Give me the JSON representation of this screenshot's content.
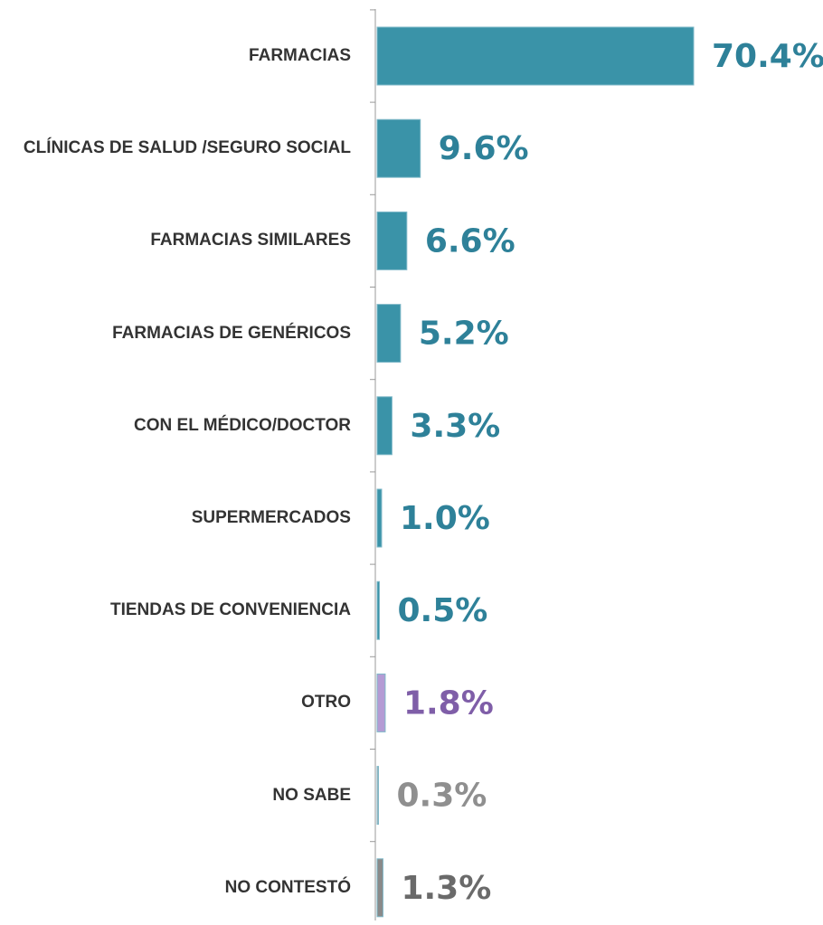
{
  "chart_data": {
    "type": "bar",
    "orientation": "horizontal",
    "categories": [
      "FARMACIAS",
      "CLÍNICAS DE SALUD /SEGURO SOCIAL",
      "FARMACIAS SIMILARES",
      "FARMACIAS DE GENÉRICOS",
      "CON EL MÉDICO/DOCTOR",
      "SUPERMERCADOS",
      "TIENDAS DE CONVENIENCIA",
      "OTRO",
      "NO SABE",
      "NO CONTESTÓ"
    ],
    "values": [
      70.4,
      9.6,
      6.6,
      5.2,
      3.3,
      1.0,
      0.5,
      1.8,
      0.3,
      1.3
    ],
    "value_labels": [
      "70.4%",
      "9.6%",
      "6.6%",
      "5.2%",
      "3.3%",
      "1.0%",
      "0.5%",
      "1.8%",
      "0.3%",
      "1.3%"
    ],
    "colors": [
      "#3a93a8",
      "#3a93a8",
      "#3a93a8",
      "#3a93a8",
      "#3a93a8",
      "#3a93a8",
      "#3a93a8",
      "#b49bd4",
      "#b0b0b0",
      "#8a8a8a"
    ],
    "label_colors": [
      "#2e8199",
      "#2e8199",
      "#2e8199",
      "#2e8199",
      "#2e8199",
      "#2e8199",
      "#2e8199",
      "#7f5ea8",
      "#8f8f8f",
      "#6a6a6a"
    ]
  }
}
